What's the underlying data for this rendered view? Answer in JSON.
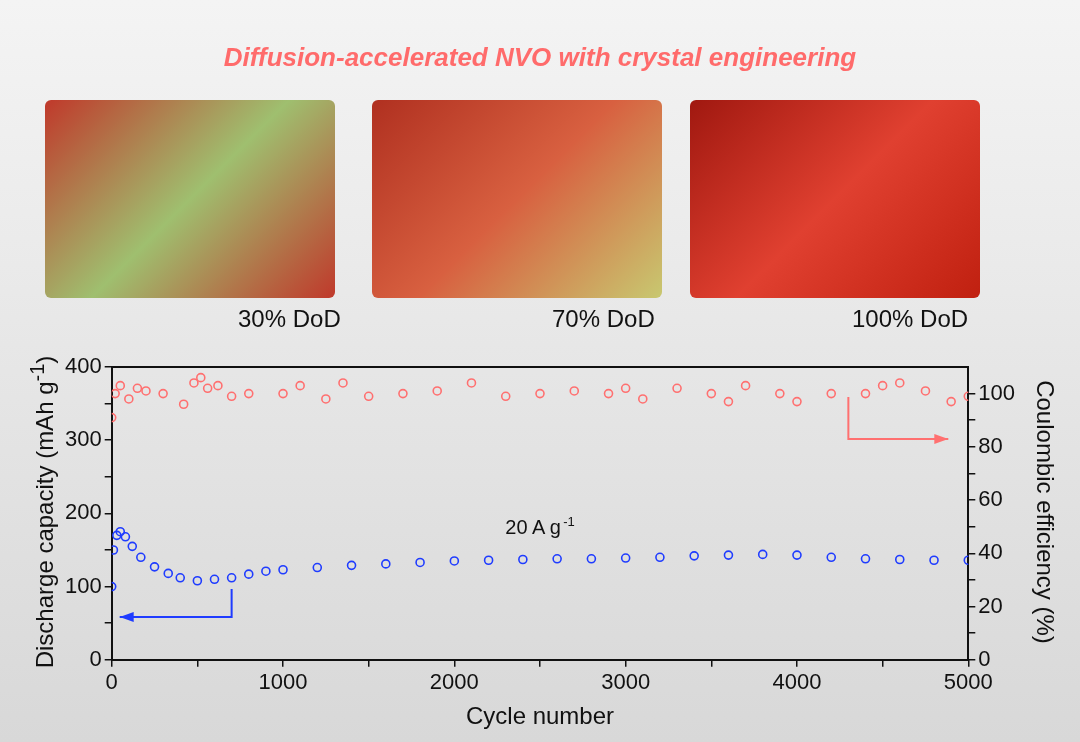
{
  "chart_data": {
    "type": "scatter",
    "title": "Diffusion-accelerated NVO with crystal engineering",
    "xlabel": "Cycle number",
    "ylabel": "Discharge capacity (mAh g$^{-1}$)",
    "y2label": "Coulombic efficiency (%)",
    "annotations": [
      "30% DoD",
      "70% DoD",
      "100% DoD",
      "20 A g$^{-1}$"
    ],
    "marker": "circle",
    "grid": false,
    "xlim": [
      0,
      5000
    ],
    "xticks": [
      0,
      {
        "value": 500,
        "label": null
      },
      1000,
      {
        "value": 1500,
        "label": null
      },
      2000,
      {
        "value": 2500,
        "label": null
      },
      3000,
      {
        "value": 3500,
        "label": null
      },
      4000,
      {
        "value": 4500,
        "label": null
      },
      5000
    ],
    "ylim": [
      0,
      400
    ],
    "yticks": [
      0,
      {
        "value": 50,
        "label": null
      },
      100,
      {
        "value": 150,
        "label": null
      },
      200,
      {
        "value": 250,
        "label": null
      },
      300,
      {
        "value": 350,
        "label": null
      },
      400
    ],
    "y2lim": [
      0,
      110
    ],
    "y2ticks": [
      0,
      {
        "value": 10,
        "label": null
      },
      20,
      {
        "value": 30,
        "label": null
      },
      40,
      {
        "value": 50,
        "label": null
      },
      60,
      {
        "value": 70,
        "label": null
      },
      80,
      {
        "value": 90,
        "label": null
      },
      100
    ],
    "series": [
      {
        "color": "#1f3cff",
        "x": [
          0,
          10,
          30,
          50,
          80,
          120,
          170,
          250,
          330,
          400,
          500,
          600,
          700,
          800,
          900,
          1000,
          1200,
          1400,
          1600,
          1800,
          2000,
          2200,
          2400,
          2600,
          2800,
          3000,
          3200,
          3400,
          3600,
          3800,
          4000,
          4200,
          4400,
          4600,
          4800,
          5000
        ],
        "values": [
          100,
          150,
          170,
          175,
          168,
          155,
          140,
          127,
          118,
          112,
          108,
          110,
          112,
          117,
          121,
          123,
          126,
          129,
          131,
          133,
          135,
          136,
          137,
          138,
          138,
          139,
          140,
          142,
          143,
          144,
          143,
          140,
          138,
          137,
          136,
          136
        ]
      },
      {
        "color": "#ff7070",
        "axis": "y2",
        "x": [
          0,
          20,
          50,
          100,
          150,
          200,
          300,
          420,
          480,
          520,
          560,
          620,
          700,
          800,
          1000,
          1100,
          1250,
          1350,
          1500,
          1700,
          1900,
          2100,
          2300,
          2500,
          2700,
          2900,
          3000,
          3100,
          3300,
          3500,
          3600,
          3700,
          3900,
          4000,
          4200,
          4400,
          4500,
          4600,
          4750,
          4900,
          5000
        ],
        "values": [
          91,
          100,
          103,
          98,
          102,
          101,
          100,
          96,
          104,
          106,
          102,
          103,
          99,
          100,
          100,
          103,
          98,
          104,
          99,
          100,
          101,
          104,
          99,
          100,
          101,
          100,
          102,
          98,
          102,
          100,
          97,
          103,
          100,
          97,
          100,
          100,
          103,
          104,
          101,
          97,
          99
        ]
      }
    ]
  }
}
